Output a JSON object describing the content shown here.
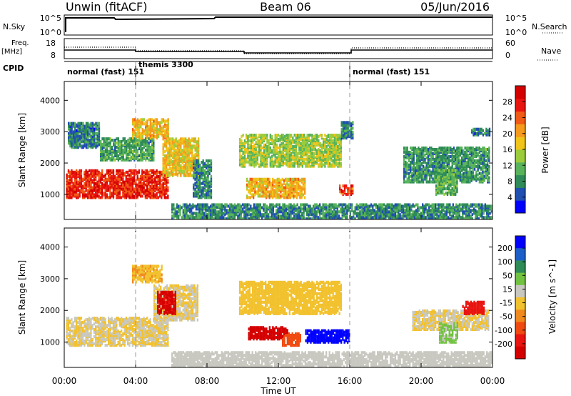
{
  "header": {
    "station": "Unwin (fitACF)",
    "beam": "Beam 06",
    "date": "05/Jun/2016"
  },
  "strip_labels": {
    "nsky": "N.Sky",
    "nsky_ticks": [
      "10^5",
      "10^0"
    ],
    "nsearch": "N.Search",
    "nsearch_ticks": [
      "10^5",
      "10^0"
    ],
    "freq": "Freq.",
    "freq_unit": "[MHz]",
    "freq_ticks": [
      "18",
      "8"
    ],
    "nave": "Nave",
    "nave_ticks": [
      "60",
      "0"
    ],
    "cpid": "CPID"
  },
  "cpid_segments": [
    {
      "label": "normal (fast)",
      "id": "151",
      "start": 0,
      "end": 4
    },
    {
      "label": "themis",
      "id": "3300",
      "start": 4,
      "end": 16
    },
    {
      "label": "normal (fast)",
      "id": "151",
      "start": 16,
      "end": 24
    }
  ],
  "colors": {
    "power_scale": [
      "#0000ff",
      "#1f4fb0",
      "#2e8b57",
      "#58b35a",
      "#9ccc3c",
      "#f0c419",
      "#f59a1c",
      "#f05a14",
      "#e8140f",
      "#d40000"
    ],
    "velocity_scale": [
      "#0000ff",
      "#1c5fc8",
      "#2e8b57",
      "#71c241",
      "#c8c8c0",
      "#f2c12e",
      "#f08a1e",
      "#f04a10",
      "#e81410",
      "#d40000"
    ]
  },
  "chart_data": [
    {
      "type": "heatmap",
      "title": "",
      "xlabel": "Time UT",
      "ylabel": "Slant Range [km]",
      "xticks": [
        "00:00",
        "04:00",
        "08:00",
        "12:00",
        "16:00",
        "20:00",
        "00:00"
      ],
      "yticks": [
        "1000",
        "2000",
        "3000",
        "4000"
      ],
      "xlim": [
        0,
        24
      ],
      "ylim": [
        200,
        4600
      ],
      "colorbar": {
        "label": "Power [dB]",
        "ticks": [
          "4",
          "8",
          "12",
          "16",
          "20",
          "24",
          "28"
        ],
        "range": [
          0,
          32
        ]
      },
      "regions": [
        {
          "t0": 0.1,
          "t1": 5.8,
          "r0": 900,
          "r1": 1800,
          "value": 27
        },
        {
          "t0": 0.2,
          "t1": 2.0,
          "r0": 2500,
          "r1": 3300,
          "value": 7
        },
        {
          "t0": 2.0,
          "t1": 5.0,
          "r0": 2100,
          "r1": 2800,
          "value": 10
        },
        {
          "t0": 3.8,
          "t1": 5.8,
          "r0": 2800,
          "r1": 3400,
          "value": 19
        },
        {
          "t0": 5.5,
          "t1": 7.5,
          "r0": 1600,
          "r1": 2800,
          "value": 18
        },
        {
          "t0": 7.2,
          "t1": 8.2,
          "r0": 900,
          "r1": 2100,
          "value": 8
        },
        {
          "t0": 9.8,
          "t1": 15.5,
          "r0": 1900,
          "r1": 2900,
          "value": 14
        },
        {
          "t0": 10.2,
          "t1": 13.5,
          "r0": 900,
          "r1": 1500,
          "value": 19
        },
        {
          "t0": 15.4,
          "t1": 16.2,
          "r0": 1000,
          "r1": 1300,
          "value": 26
        },
        {
          "t0": 15.5,
          "t1": 16.2,
          "r0": 2800,
          "r1": 3300,
          "value": 7
        },
        {
          "t0": 19.0,
          "t1": 23.8,
          "r0": 1400,
          "r1": 2500,
          "value": 9
        },
        {
          "t0": 20.8,
          "t1": 22.0,
          "r0": 1000,
          "r1": 1800,
          "value": 11
        },
        {
          "t0": 22.8,
          "t1": 23.8,
          "r0": 2900,
          "r1": 3100,
          "value": 7
        },
        {
          "t0": 6.0,
          "t1": 24.0,
          "r0": 220,
          "r1": 700,
          "value": 8
        }
      ]
    },
    {
      "type": "heatmap",
      "title": "",
      "xlabel": "Time UT",
      "ylabel": "Slant Range [km]",
      "xticks": [
        "00:00",
        "04:00",
        "08:00",
        "12:00",
        "16:00",
        "20:00",
        "00:00"
      ],
      "yticks": [
        "1000",
        "2000",
        "3000",
        "4000"
      ],
      "xlim": [
        0,
        24
      ],
      "ylim": [
        200,
        4600
      ],
      "colorbar": {
        "label": "Velocity [m s^-1]",
        "ticks": [
          "200",
          "100",
          "50",
          "15",
          "-15",
          "-50",
          "-100",
          "-200"
        ],
        "range": [
          -250,
          250
        ]
      },
      "regions": [
        {
          "t0": 0.1,
          "t1": 5.8,
          "r0": 900,
          "r1": 1800,
          "value": 0
        },
        {
          "t0": 5.0,
          "t1": 7.5,
          "r0": 1700,
          "r1": 2800,
          "value": 0
        },
        {
          "t0": 3.8,
          "t1": 5.5,
          "r0": 2900,
          "r1": 3400,
          "value": -40
        },
        {
          "t0": 5.2,
          "t1": 6.2,
          "r0": 1900,
          "r1": 2600,
          "value": -210
        },
        {
          "t0": 9.8,
          "t1": 15.5,
          "r0": 1900,
          "r1": 2900,
          "value": -30
        },
        {
          "t0": 10.3,
          "t1": 12.5,
          "r0": 1100,
          "r1": 1500,
          "value": -220
        },
        {
          "t0": 12.2,
          "t1": 13.2,
          "r0": 900,
          "r1": 1300,
          "value": -120
        },
        {
          "t0": 13.5,
          "t1": 16.0,
          "r0": 1000,
          "r1": 1400,
          "value": 220
        },
        {
          "t0": 19.5,
          "t1": 23.8,
          "r0": 1400,
          "r1": 2000,
          "value": 0
        },
        {
          "t0": 21.0,
          "t1": 22.0,
          "r0": 1000,
          "r1": 1600,
          "value": 60
        },
        {
          "t0": 22.3,
          "t1": 23.5,
          "r0": 1900,
          "r1": 2300,
          "value": -180
        },
        {
          "t0": 6.0,
          "t1": 24.0,
          "r0": 220,
          "r1": 700,
          "value": 30
        }
      ]
    }
  ]
}
